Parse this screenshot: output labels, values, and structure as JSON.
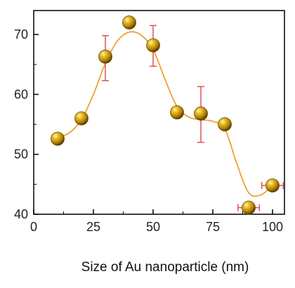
{
  "chart_data": {
    "type": "scatter",
    "title": "",
    "xlabel": "Size of Au nanoparticle (nm)",
    "ylabel": "",
    "xlim": [
      0,
      105
    ],
    "ylim": [
      40,
      74
    ],
    "xticks": [
      0,
      25,
      50,
      75,
      100
    ],
    "yticks": [
      40,
      50,
      60,
      70
    ],
    "x_tick_labels": [
      "0",
      "25",
      "50",
      "75",
      "100"
    ],
    "y_tick_labels": [
      "40",
      "50",
      "60",
      "70"
    ],
    "grid": false,
    "legend": "none",
    "series": [
      {
        "marker": "gold-sphere",
        "points": [
          {
            "x": 10,
            "y": 52.6
          },
          {
            "x": 20,
            "y": 56.0
          },
          {
            "x": 30,
            "y": 66.3,
            "yerr_low": 4.0,
            "yerr_high": 3.5
          },
          {
            "x": 40,
            "y": 72.0
          },
          {
            "x": 50,
            "y": 68.2,
            "yerr_low": 3.5,
            "yerr_high": 3.3
          },
          {
            "x": 60,
            "y": 57.0
          },
          {
            "x": 70,
            "y": 56.8,
            "yerr_low": 4.8,
            "yerr_high": 4.5
          },
          {
            "x": 80,
            "y": 55.0
          },
          {
            "x": 90,
            "y": 41.1,
            "xerr": 4.5
          },
          {
            "x": 100,
            "y": 44.8,
            "xerr": 4.5
          }
        ]
      }
    ],
    "fit_curve": {
      "color": "#F0A030",
      "points": [
        [
          10,
          52.8
        ],
        [
          15,
          53.6
        ],
        [
          20,
          55.8
        ],
        [
          25,
          60.0
        ],
        [
          30,
          65.2
        ],
        [
          35,
          68.9
        ],
        [
          40,
          70.4
        ],
        [
          45,
          69.9
        ],
        [
          50,
          67.5
        ],
        [
          55,
          62.5
        ],
        [
          60,
          58.0
        ],
        [
          65,
          56.2
        ],
        [
          70,
          55.8
        ],
        [
          75,
          55.5
        ],
        [
          80,
          54.3
        ],
        [
          85,
          48.5
        ],
        [
          90,
          43.6
        ],
        [
          95,
          43.2
        ],
        [
          100,
          44.8
        ]
      ]
    },
    "colors": {
      "marker_fill": "#C8960E",
      "marker_highlight": "#FFF4B0",
      "marker_shadow": "#5A3C00",
      "error_bar": "#E0505A",
      "axis": "#000000"
    }
  }
}
